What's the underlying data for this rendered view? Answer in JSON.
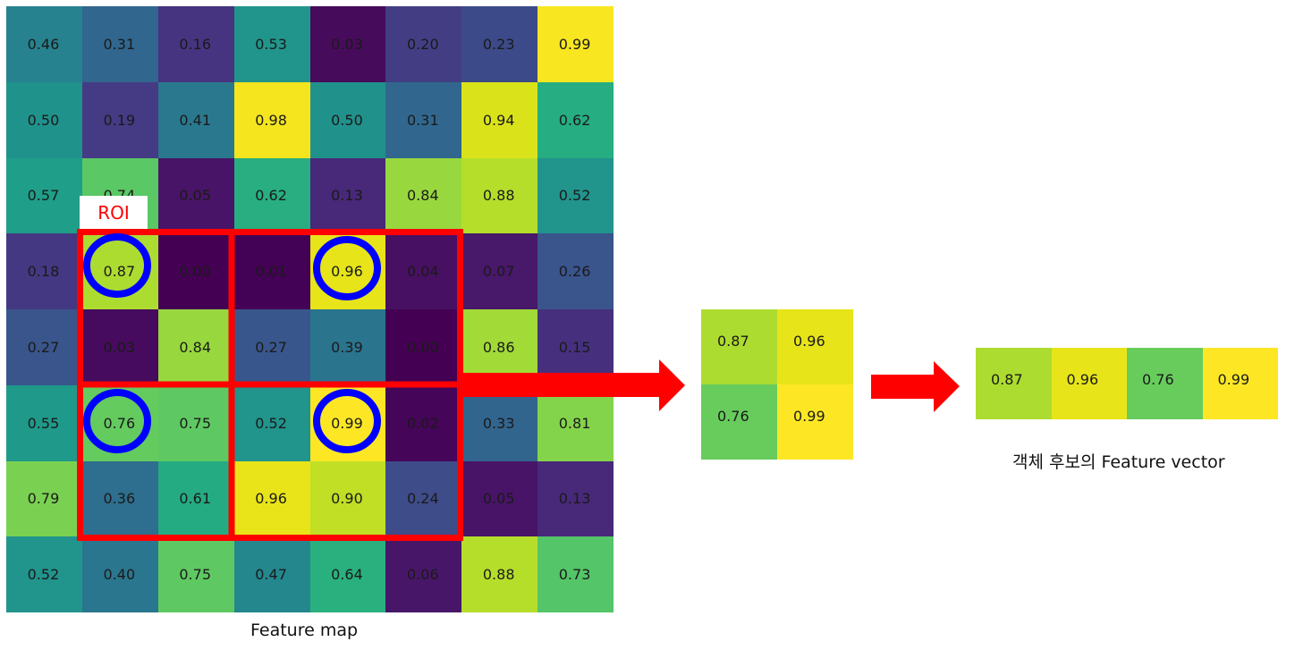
{
  "feature_map": {
    "caption": "Feature map",
    "rows": [
      [
        {
          "v": "0.46",
          "c": "#26828e"
        },
        {
          "v": "0.31",
          "c": "#31668e"
        },
        {
          "v": "0.16",
          "c": "#463480"
        },
        {
          "v": "0.53",
          "c": "#21958b"
        },
        {
          "v": "0.03",
          "c": "#470b5c"
        },
        {
          "v": "0.20",
          "c": "#433e84"
        },
        {
          "v": "0.23",
          "c": "#3d4a89"
        },
        {
          "v": "0.99",
          "c": "#f8e621"
        }
      ],
      [
        {
          "v": "0.50",
          "c": "#20928c"
        },
        {
          "v": "0.19",
          "c": "#443b84"
        },
        {
          "v": "0.41",
          "c": "#2a788e"
        },
        {
          "v": "0.98",
          "c": "#f5e51f"
        },
        {
          "v": "0.50",
          "c": "#21918c"
        },
        {
          "v": "0.31",
          "c": "#31678e"
        },
        {
          "v": "0.94",
          "c": "#dae31a"
        },
        {
          "v": "0.62",
          "c": "#26ad81"
        }
      ],
      [
        {
          "v": "0.57",
          "c": "#1f9e89"
        },
        {
          "v": "0.74",
          "c": "#5ac864"
        },
        {
          "v": "0.05",
          "c": "#481467"
        },
        {
          "v": "0.62",
          "c": "#28ae80"
        },
        {
          "v": "0.13",
          "c": "#482878"
        },
        {
          "v": "0.84",
          "c": "#98d83e"
        },
        {
          "v": "0.88",
          "c": "#b5de2b"
        },
        {
          "v": "0.52",
          "c": "#21948c"
        }
      ],
      [
        {
          "v": "0.18",
          "c": "#453882"
        },
        {
          "v": "0.87",
          "c": "#addc30"
        },
        {
          "v": "0.00",
          "c": "#440154"
        },
        {
          "v": "0.01",
          "c": "#440256"
        },
        {
          "v": "0.96",
          "c": "#e7e419"
        },
        {
          "v": "0.04",
          "c": "#471063"
        },
        {
          "v": "0.07",
          "c": "#48186a"
        },
        {
          "v": "0.26",
          "c": "#3a548c"
        }
      ],
      [
        {
          "v": "0.27",
          "c": "#39558c"
        },
        {
          "v": "0.03",
          "c": "#460b5e"
        },
        {
          "v": "0.84",
          "c": "#98d83e"
        },
        {
          "v": "0.27",
          "c": "#39568c"
        },
        {
          "v": "0.39",
          "c": "#2b748e"
        },
        {
          "v": "0.00",
          "c": "#440154"
        },
        {
          "v": "0.86",
          "c": "#a2da37"
        },
        {
          "v": "0.15",
          "c": "#46307e"
        }
      ],
      [
        {
          "v": "0.55",
          "c": "#1f998a"
        },
        {
          "v": "0.76",
          "c": "#64cb5f"
        },
        {
          "v": "0.75",
          "c": "#5ec962"
        },
        {
          "v": "0.52",
          "c": "#21948c"
        },
        {
          "v": "0.99",
          "c": "#fde725"
        },
        {
          "v": "0.02",
          "c": "#450559"
        },
        {
          "v": "0.33",
          "c": "#32658e"
        },
        {
          "v": "0.81",
          "c": "#84d44b"
        }
      ],
      [
        {
          "v": "0.79",
          "c": "#7ad151"
        },
        {
          "v": "0.36",
          "c": "#2e6e8e"
        },
        {
          "v": "0.61",
          "c": "#25ab82"
        },
        {
          "v": "0.96",
          "c": "#e8e419"
        },
        {
          "v": "0.90",
          "c": "#c0df25"
        },
        {
          "v": "0.24",
          "c": "#3e4c8a"
        },
        {
          "v": "0.05",
          "c": "#481467"
        },
        {
          "v": "0.13",
          "c": "#482878"
        }
      ],
      [
        {
          "v": "0.52",
          "c": "#21948c"
        },
        {
          "v": "0.40",
          "c": "#2a768e"
        },
        {
          "v": "0.75",
          "c": "#5ec962"
        },
        {
          "v": "0.47",
          "c": "#24878e"
        },
        {
          "v": "0.64",
          "c": "#2ab07f"
        },
        {
          "v": "0.06",
          "c": "#481668"
        },
        {
          "v": "0.88",
          "c": "#b5de2b"
        },
        {
          "v": "0.73",
          "c": "#54c568"
        }
      ]
    ]
  },
  "roi": {
    "label": "ROI",
    "color": "#ff0000",
    "circle_color": "#0000ff",
    "circled_values": [
      "0.87",
      "0.96",
      "0.76",
      "0.99"
    ]
  },
  "pooled": {
    "cells": [
      {
        "v": "0.87",
        "c": "#addc30"
      },
      {
        "v": "0.96",
        "c": "#e7e419"
      },
      {
        "v": "0.76",
        "c": "#67cc5c"
      },
      {
        "v": "0.99",
        "c": "#fde725"
      }
    ]
  },
  "feature_vector": {
    "caption": "객체 후보의 Feature vector",
    "cells": [
      {
        "v": "0.87",
        "c": "#addc30"
      },
      {
        "v": "0.96",
        "c": "#e7e419"
      },
      {
        "v": "0.76",
        "c": "#67cc5c"
      },
      {
        "v": "0.99",
        "c": "#fde725"
      }
    ]
  },
  "arrows": {
    "color": "#ff0000"
  }
}
